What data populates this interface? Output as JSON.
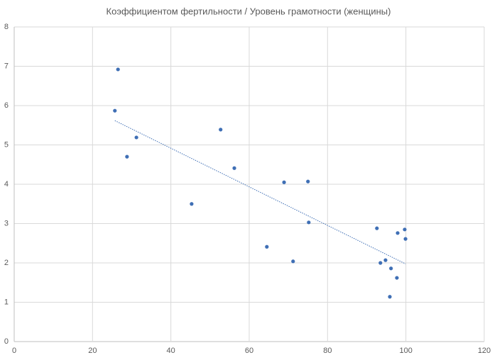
{
  "chart_data": {
    "type": "scatter",
    "title": "Коэффициентом фертильности / Уровень грамотности (женщины)",
    "series": [
      {
        "color": "#3f6fb5",
        "x": [
          26.5,
          25.7,
          31.2,
          28.8,
          52.7,
          56.2,
          45.3,
          68.9,
          75.0,
          75.2,
          64.5,
          71.2,
          92.6,
          97.9,
          99.7,
          99.9,
          93.5,
          94.8,
          96.2,
          97.7,
          95.9
        ],
        "values": [
          6.92,
          5.87,
          5.19,
          4.7,
          5.39,
          4.41,
          3.5,
          4.05,
          4.07,
          3.03,
          2.41,
          2.04,
          2.88,
          2.76,
          2.85,
          2.61,
          2.0,
          2.07,
          1.86,
          1.62,
          1.14
        ]
      }
    ],
    "trendline": true,
    "xlim": [
      0,
      120
    ],
    "xticks": [
      0,
      20,
      40,
      60,
      80,
      100,
      120
    ],
    "ylim": [
      0,
      8
    ],
    "yticks": [
      0,
      1,
      2,
      3,
      4,
      5,
      6,
      7,
      8
    ],
    "grid": true
  }
}
